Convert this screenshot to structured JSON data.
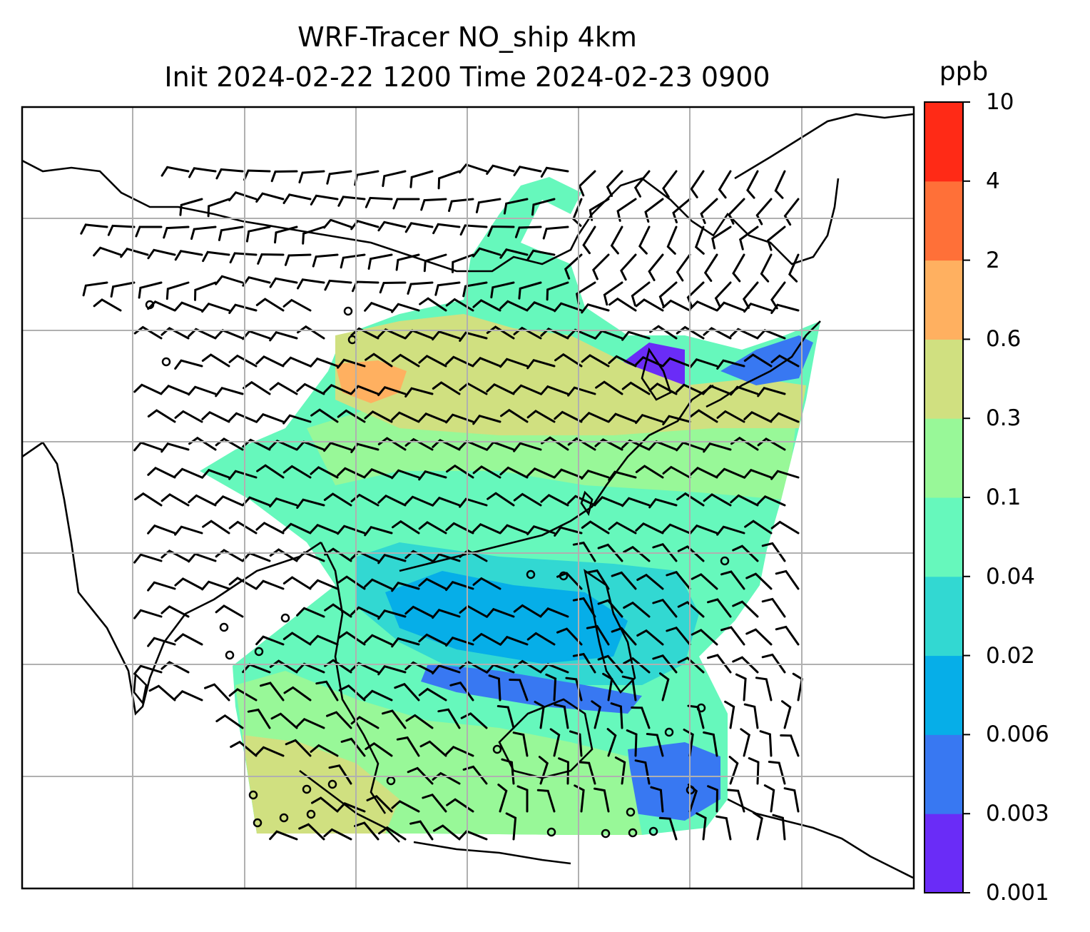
{
  "title": {
    "line1": "WRF-Tracer NO_ship 4km",
    "line2": "Init 2024-02-22 1200 Time 2024-02-23 0900"
  },
  "colorbar": {
    "unit": "ppb",
    "levels": [
      "0.001",
      "0.003",
      "0.006",
      "0.02",
      "0.04",
      "0.1",
      "0.3",
      "0.6",
      "2",
      "4",
      "10"
    ],
    "colors": [
      "#6a2cf7",
      "#3878f2",
      "#06aee8",
      "#32d8d2",
      "#66f8bc",
      "#98f898",
      "#d0e080",
      "#ffb060",
      "#ff7038",
      "#ff2a16"
    ]
  },
  "map": {
    "variable": "NO_ship tracer concentration",
    "overlay": "wind barbs",
    "gridlines": true,
    "coastlines": true
  }
}
